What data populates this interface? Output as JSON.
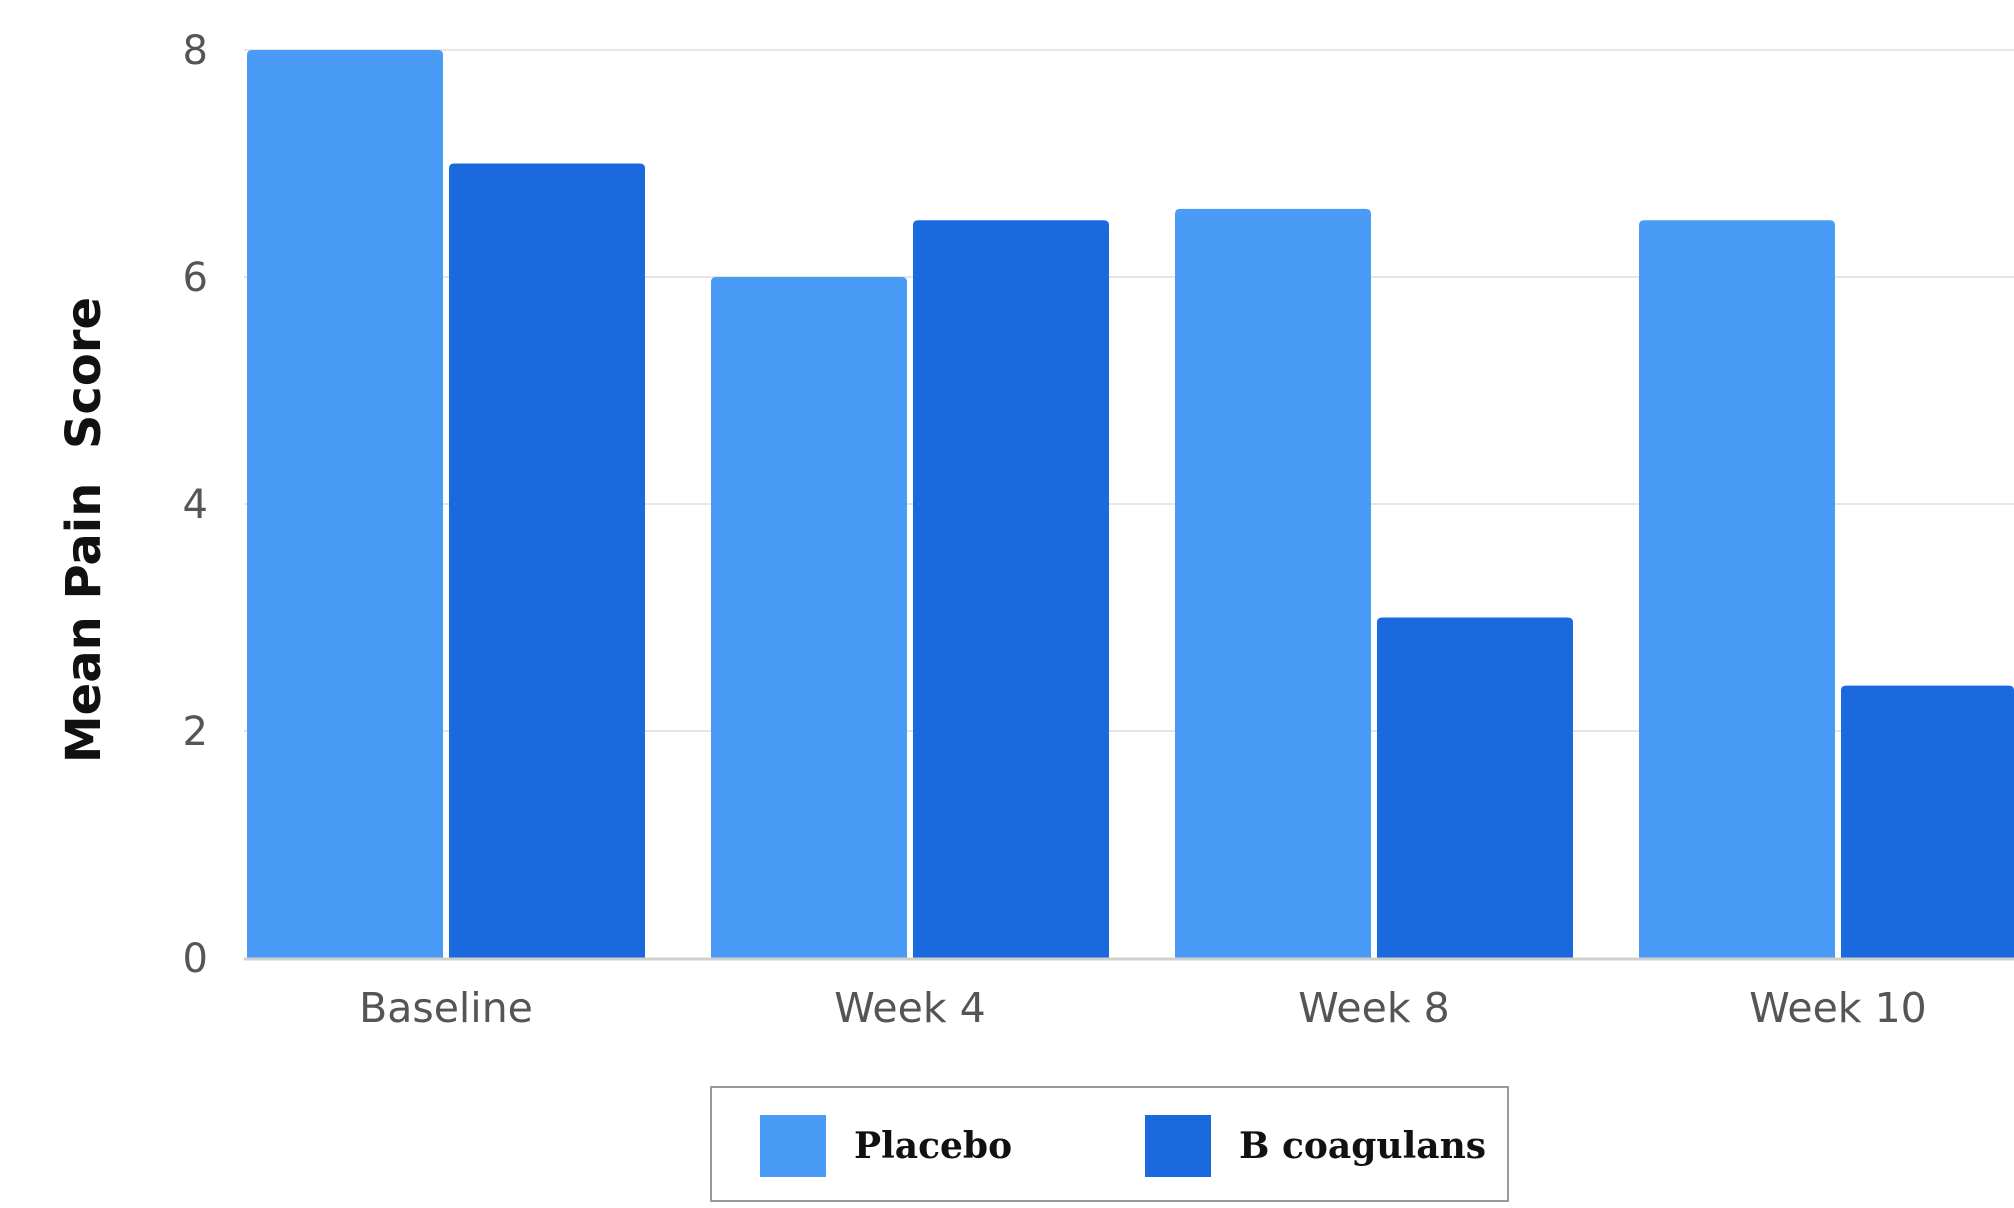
{
  "chart_data": {
    "type": "bar",
    "categories": [
      "Baseline",
      "Week 4",
      "Week 8",
      "Week 10"
    ],
    "series": [
      {
        "name": "Placebo",
        "values": [
          8.0,
          6.0,
          6.6,
          6.5
        ],
        "color": "#4a9bf5"
      },
      {
        "name": "B coagulans",
        "values": [
          7.0,
          6.5,
          3.0,
          2.4
        ],
        "color": "#1a69df"
      }
    ],
    "yticks": [
      "0",
      "2",
      "4",
      "6",
      "8"
    ],
    "ylabel": "Mean Pain  Score",
    "ylim": [
      0,
      8
    ],
    "grid": true,
    "legend_position": "bottom-center"
  },
  "colors": {
    "gridline": "#e6e6e6",
    "baseline": "#d0d0d0"
  }
}
